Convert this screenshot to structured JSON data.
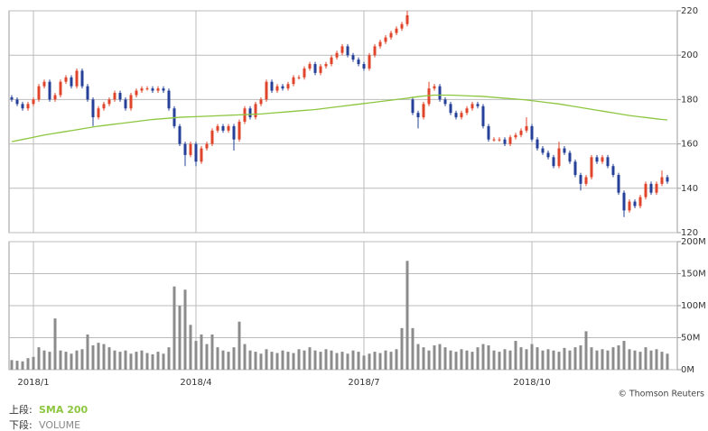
{
  "chart_data": [
    {
      "type": "candlestick",
      "categories": [
        null,
        null,
        null,
        null,
        "2018/1",
        null,
        null,
        null,
        null,
        null,
        null,
        null,
        null,
        null,
        null,
        null,
        null,
        null,
        null,
        null,
        null,
        null,
        null,
        null,
        null,
        null,
        null,
        null,
        null,
        null,
        null,
        null,
        null,
        null,
        "2018/4",
        null,
        null,
        null,
        null,
        null,
        null,
        null,
        null,
        null,
        null,
        null,
        null,
        null,
        null,
        null,
        null,
        null,
        null,
        null,
        null,
        null,
        null,
        null,
        null,
        null,
        null,
        null,
        null,
        null,
        null,
        "2018/7",
        null,
        null,
        null,
        null,
        null,
        null,
        null,
        null,
        null,
        null,
        null,
        null,
        null,
        null,
        null,
        null,
        null,
        null,
        null,
        null,
        null,
        null,
        null,
        null,
        null,
        null,
        null,
        null,
        null,
        null,
        "2018/10",
        null,
        null,
        null,
        null,
        null,
        null,
        null,
        null,
        null,
        null,
        null,
        null,
        null,
        null,
        null,
        null,
        null,
        null,
        null,
        null,
        null,
        null,
        null,
        null,
        null
      ],
      "open": [
        181,
        180,
        178,
        176,
        178,
        180,
        186,
        188,
        180,
        182,
        188,
        190,
        186,
        193,
        186,
        180,
        172,
        176,
        178,
        180,
        183,
        180,
        176,
        182,
        184,
        185,
        185,
        184,
        185,
        184,
        176,
        168,
        160,
        155,
        160,
        152,
        158,
        160,
        166,
        168,
        166,
        168,
        162,
        170,
        176,
        172,
        178,
        180,
        188,
        184,
        186,
        185,
        187,
        190,
        190,
        194,
        196,
        192,
        195,
        196,
        199,
        201,
        204,
        200,
        198,
        196,
        194,
        200,
        204,
        206,
        208,
        210,
        212,
        214,
        180,
        174,
        172,
        178,
        185,
        186,
        180,
        178,
        174,
        172,
        174,
        176,
        178,
        177,
        168,
        162,
        162,
        162,
        160,
        163,
        164,
        166,
        168,
        162,
        158,
        156,
        154,
        150,
        158,
        156,
        152,
        146,
        142,
        145,
        154,
        152,
        154,
        150,
        146,
        138,
        130,
        134,
        132,
        136,
        142,
        138,
        142,
        145
      ],
      "high": [
        182,
        181,
        179,
        179,
        181,
        187,
        189,
        189,
        183,
        189,
        191,
        191,
        194,
        194,
        187,
        181,
        177,
        179,
        181,
        184,
        184,
        181,
        183,
        185,
        186,
        186,
        186,
        186,
        186,
        185,
        177,
        169,
        161,
        161,
        161,
        159,
        161,
        167,
        169,
        169,
        169,
        169,
        171,
        177,
        177,
        179,
        181,
        189,
        189,
        187,
        187,
        188,
        191,
        191,
        195,
        197,
        197,
        196,
        197,
        200,
        202,
        205,
        205,
        201,
        199,
        197,
        201,
        205,
        207,
        209,
        211,
        213,
        215,
        220,
        181,
        175,
        179,
        188,
        187,
        187,
        181,
        179,
        175,
        175,
        177,
        179,
        179,
        178,
        169,
        163,
        163,
        163,
        164,
        165,
        167,
        172,
        169,
        163,
        159,
        157,
        155,
        161,
        159,
        157,
        153,
        147,
        146,
        155,
        155,
        155,
        155,
        151,
        147,
        139,
        135,
        135,
        137,
        143,
        143,
        143,
        148,
        146
      ],
      "low": [
        179,
        177,
        175,
        175,
        177,
        179,
        185,
        179,
        179,
        181,
        187,
        185,
        185,
        185,
        179,
        168,
        171,
        175,
        177,
        179,
        179,
        175,
        175,
        181,
        183,
        184,
        183,
        183,
        183,
        175,
        167,
        159,
        150,
        154,
        150,
        151,
        157,
        159,
        165,
        165,
        165,
        157,
        161,
        169,
        171,
        171,
        177,
        179,
        183,
        183,
        184,
        184,
        186,
        189,
        189,
        193,
        191,
        191,
        194,
        195,
        198,
        200,
        199,
        197,
        195,
        193,
        193,
        199,
        203,
        205,
        207,
        209,
        211,
        213,
        173,
        167,
        171,
        177,
        184,
        179,
        177,
        173,
        171,
        171,
        173,
        175,
        176,
        167,
        161,
        161,
        161,
        159,
        159,
        162,
        163,
        165,
        161,
        157,
        155,
        153,
        149,
        149,
        155,
        151,
        145,
        139,
        141,
        144,
        151,
        151,
        149,
        145,
        137,
        127,
        129,
        131,
        131,
        135,
        137,
        137,
        141,
        142
      ],
      "close": [
        180,
        178,
        176,
        178,
        180,
        186,
        188,
        180,
        182,
        188,
        190,
        186,
        193,
        186,
        180,
        172,
        176,
        178,
        180,
        183,
        180,
        176,
        182,
        184,
        185,
        185,
        184,
        185,
        184,
        176,
        168,
        160,
        155,
        160,
        152,
        158,
        160,
        166,
        168,
        166,
        168,
        162,
        170,
        176,
        172,
        178,
        180,
        188,
        184,
        186,
        185,
        187,
        190,
        190,
        194,
        196,
        192,
        195,
        196,
        199,
        201,
        204,
        200,
        198,
        196,
        194,
        200,
        204,
        206,
        208,
        210,
        212,
        214,
        218,
        174,
        172,
        178,
        185,
        186,
        180,
        178,
        174,
        172,
        174,
        176,
        178,
        177,
        168,
        162,
        162,
        162,
        160,
        163,
        164,
        166,
        168,
        162,
        158,
        156,
        154,
        150,
        158,
        156,
        152,
        146,
        142,
        145,
        154,
        152,
        154,
        150,
        146,
        138,
        130,
        134,
        132,
        136,
        142,
        138,
        142,
        145,
        143
      ],
      "up_color": "#e0452b",
      "down_color": "#26409a",
      "series": [
        {
          "name": "SMA 200",
          "color": "#8dc63f",
          "values": [
            161,
            161.5,
            162,
            162.5,
            163,
            163.5,
            164,
            164.4,
            164.8,
            165.2,
            165.6,
            166,
            166.4,
            166.8,
            167.2,
            167.6,
            168,
            168.3,
            168.6,
            168.9,
            169.2,
            169.5,
            169.8,
            170.1,
            170.4,
            170.7,
            171,
            171.2,
            171.4,
            171.6,
            171.8,
            172,
            172.1,
            172.2,
            172.3,
            172.4,
            172.5,
            172.6,
            172.7,
            172.8,
            172.9,
            173,
            173.1,
            173.2,
            173.3,
            173.4,
            173.5,
            173.7,
            173.9,
            174.1,
            174.3,
            174.5,
            174.7,
            174.9,
            175.1,
            175.3,
            175.5,
            175.8,
            176.1,
            176.4,
            176.7,
            177,
            177.3,
            177.6,
            177.9,
            178.2,
            178.5,
            178.8,
            179.1,
            179.4,
            179.7,
            180,
            180.3,
            180.6,
            181,
            181.3,
            181.6,
            181.8,
            182,
            182,
            182,
            182,
            181.9,
            181.8,
            181.7,
            181.6,
            181.5,
            181.4,
            181.2,
            181,
            180.8,
            180.6,
            180.4,
            180.2,
            180,
            179.8,
            179.5,
            179.2,
            178.9,
            178.6,
            178.3,
            178,
            177.6,
            177.2,
            176.8,
            176.4,
            176,
            175.6,
            175.2,
            174.8,
            174.4,
            174,
            173.6,
            173.2,
            172.8,
            172.5,
            172.2,
            171.9,
            171.6,
            171.3,
            171,
            170.8
          ]
        }
      ],
      "legend_label": "上段:",
      "ylim": [
        120,
        220
      ],
      "yticks": [
        120,
        140,
        160,
        180,
        200,
        220
      ],
      "grid": true
    },
    {
      "type": "bar",
      "series": [
        {
          "name": "VOLUME",
          "color": "#8c8c8c",
          "values": [
            15,
            14,
            13,
            18,
            20,
            35,
            30,
            28,
            80,
            30,
            28,
            25,
            30,
            32,
            55,
            38,
            42,
            40,
            35,
            30,
            28,
            30,
            25,
            28,
            30,
            26,
            24,
            28,
            25,
            35,
            130,
            100,
            125,
            70,
            45,
            55,
            40,
            55,
            35,
            30,
            28,
            35,
            75,
            40,
            30,
            28,
            25,
            32,
            28,
            26,
            30,
            28,
            26,
            32,
            30,
            35,
            30,
            28,
            32,
            30,
            26,
            28,
            25,
            30,
            28,
            22,
            25,
            28,
            26,
            30,
            28,
            32,
            65,
            170,
            65,
            40,
            35,
            30,
            38,
            40,
            35,
            30,
            28,
            32,
            30,
            28,
            35,
            40,
            38,
            30,
            28,
            32,
            30,
            45,
            35,
            32,
            40,
            35,
            30,
            32,
            30,
            28,
            34,
            30,
            35,
            38,
            60,
            35,
            30,
            32,
            30,
            35,
            38,
            45,
            32,
            30,
            28,
            35,
            30,
            32,
            28,
            25
          ]
        }
      ],
      "legend_label": "下段:",
      "ylim": [
        0,
        200
      ],
      "yticks": [
        {
          "value": 0,
          "label": "0M"
        },
        {
          "value": 50,
          "label": "50M"
        },
        {
          "value": 100,
          "label": "100M"
        },
        {
          "value": 150,
          "label": "150M"
        },
        {
          "value": 200,
          "label": "200M"
        }
      ],
      "grid": true,
      "source": "© Thomson Reuters"
    }
  ]
}
